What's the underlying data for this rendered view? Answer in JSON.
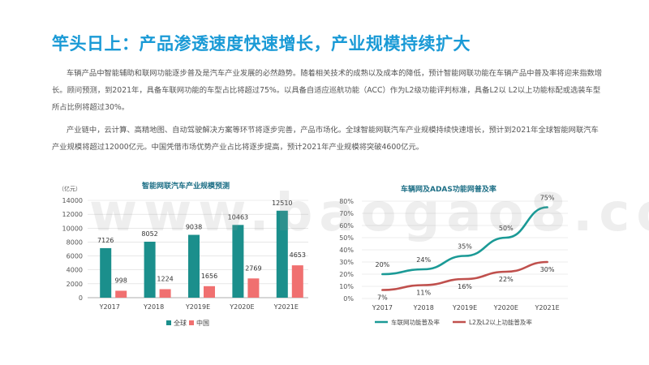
{
  "page": {
    "title": "竿头日上：产品渗透速度快速增长，产业规模持续扩大",
    "paragraphs": [
      "车辆产品中智能辅助和联网功能逐步普及是汽车产业发展的必然趋势。随着相关技术的成熟以及成本的降低，预计智能网联功能在车辆产品中普及率将迎来指数增长。顾问预测，到2021年，具备车联网功能的车型占比将超过75%。以具备自适应巡航功能（ACC）作为L2级功能评判标准，具备L2以 L2以上功能标配或选装车型所占比例将超过30%。",
      "产业链中，云计算、高精地图、自动驾驶解决方案等环节将逐步完善，产品市场化。全球智能网联汽车产业规模持续快速增长，预计到2021年全球智能网联汽车产业规模将超过12000亿元。中国凭借市场优势产业占比将逐步提高，预计2021年产业规模将突破4600亿元。"
    ],
    "watermark": "www.baogao8.com"
  },
  "chart_data": [
    {
      "type": "bar",
      "title": "智能网联汽车产业规模预测",
      "unit_label": "（亿元）",
      "categories": [
        "Y2017",
        "Y2018",
        "Y2019E",
        "Y2020E",
        "Y2021E"
      ],
      "series": [
        {
          "name": "全球",
          "values": [
            7126,
            8052,
            9038,
            10463,
            12510
          ],
          "color": "#1b8f8c"
        },
        {
          "name": "中国",
          "values": [
            998,
            1224,
            1656,
            2769,
            4653
          ],
          "color": "#f07070"
        }
      ],
      "ylim": [
        0,
        14000
      ],
      "yticks": [
        "0",
        "2000",
        "4000",
        "6000",
        "8000",
        "10000",
        "12000",
        "14000"
      ]
    },
    {
      "type": "line",
      "title": "车辆网及ADAS功能网普及率",
      "categories": [
        "Y2017",
        "Y2018",
        "Y2019E",
        "Y2020E",
        "Y2021E"
      ],
      "series": [
        {
          "name": "车联网功能普及率",
          "values": [
            20,
            24,
            35,
            50,
            75
          ],
          "labels": [
            "20%",
            "24%",
            "35%",
            "50%",
            "75%"
          ],
          "color": "#1b9a96"
        },
        {
          "name": "L2及L2以上功能普及率",
          "values": [
            7,
            11,
            16,
            22,
            30
          ],
          "labels": [
            "7%",
            "11%",
            "16%",
            "22%",
            "30%"
          ],
          "color": "#c0504d"
        }
      ],
      "ylim": [
        0,
        80
      ],
      "yticks": [
        "0%",
        "10%",
        "20%",
        "30%",
        "40%",
        "50%",
        "60%",
        "70%",
        "80%"
      ]
    }
  ]
}
